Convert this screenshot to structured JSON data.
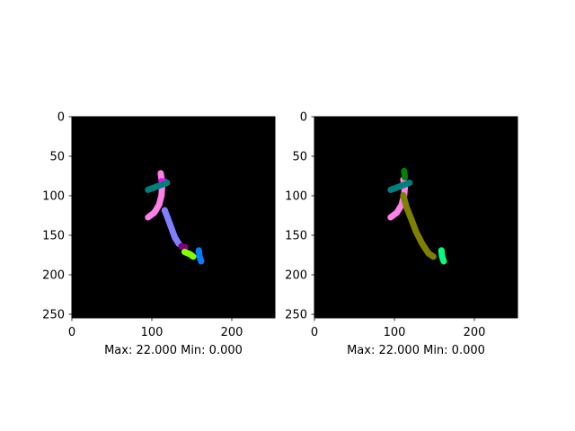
{
  "chart_data": [
    {
      "type": "heatmap",
      "title": "",
      "xlabel": "Max: 22.000 Min: 0.000",
      "ylabel": "",
      "xlim": [
        0,
        256
      ],
      "ylim": [
        256,
        0
      ],
      "xticks": [
        "0",
        "100",
        "200"
      ],
      "yticks": [
        "0",
        "50",
        "100",
        "150",
        "200",
        "250"
      ],
      "grid": false,
      "background": "#000000",
      "segments": [
        {
          "color": "#ff80e8",
          "points": [
            [
              112,
              72
            ],
            [
              114,
              86
            ],
            [
              113,
              100
            ],
            [
              110,
              112
            ],
            [
              104,
              122
            ],
            [
              96,
              128
            ]
          ]
        },
        {
          "color": "#ff00ff",
          "points": [
            [
              113,
              82
            ],
            [
              118,
              83
            ]
          ]
        },
        {
          "color": "#007f7f",
          "points": [
            [
              96,
              93
            ],
            [
              104,
              90
            ],
            [
              112,
              87
            ],
            [
              120,
              84
            ]
          ]
        },
        {
          "color": "#8080ff",
          "points": [
            [
              117,
              119
            ],
            [
              122,
              132
            ],
            [
              126,
              143
            ],
            [
              130,
              154
            ],
            [
              135,
              162
            ]
          ]
        },
        {
          "color": "#800080",
          "points": [
            [
              138,
              165
            ],
            [
              143,
              166
            ]
          ]
        },
        {
          "color": "#80ff00",
          "points": [
            [
              142,
              172
            ],
            [
              149,
              175
            ],
            [
              153,
              178
            ]
          ]
        },
        {
          "color": "#0080ff",
          "points": [
            [
              160,
              170
            ],
            [
              161,
              178
            ],
            [
              163,
              184
            ]
          ]
        }
      ]
    },
    {
      "type": "heatmap",
      "title": "",
      "xlabel": "Max: 22.000 Min: 0.000",
      "ylabel": "",
      "xlim": [
        0,
        256
      ],
      "ylim": [
        256,
        0
      ],
      "xticks": [
        "0",
        "100",
        "200"
      ],
      "yticks": [
        "0",
        "50",
        "100",
        "150",
        "200",
        "250"
      ],
      "grid": false,
      "background": "#000000",
      "segments": [
        {
          "color": "#ff80e8",
          "points": [
            [
              112,
              80
            ],
            [
              114,
              90
            ],
            [
              113,
              100
            ],
            [
              110,
              112
            ],
            [
              104,
              122
            ],
            [
              96,
              128
            ]
          ]
        },
        {
          "color": "#007f00",
          "points": [
            [
              113,
              69
            ],
            [
              114,
              77
            ]
          ]
        },
        {
          "color": "#007f7f",
          "points": [
            [
              96,
              93
            ],
            [
              104,
              90
            ],
            [
              112,
              87
            ],
            [
              120,
              84
            ]
          ]
        },
        {
          "color": "#808000",
          "points": [
            [
              112,
              100
            ],
            [
              116,
              115
            ],
            [
              122,
              130
            ],
            [
              128,
              146
            ],
            [
              136,
              162
            ],
            [
              144,
              174
            ],
            [
              150,
              178
            ]
          ]
        },
        {
          "color": "#00ff80",
          "points": [
            [
              160,
              170
            ],
            [
              161,
              178
            ],
            [
              163,
              184
            ]
          ]
        }
      ]
    }
  ]
}
